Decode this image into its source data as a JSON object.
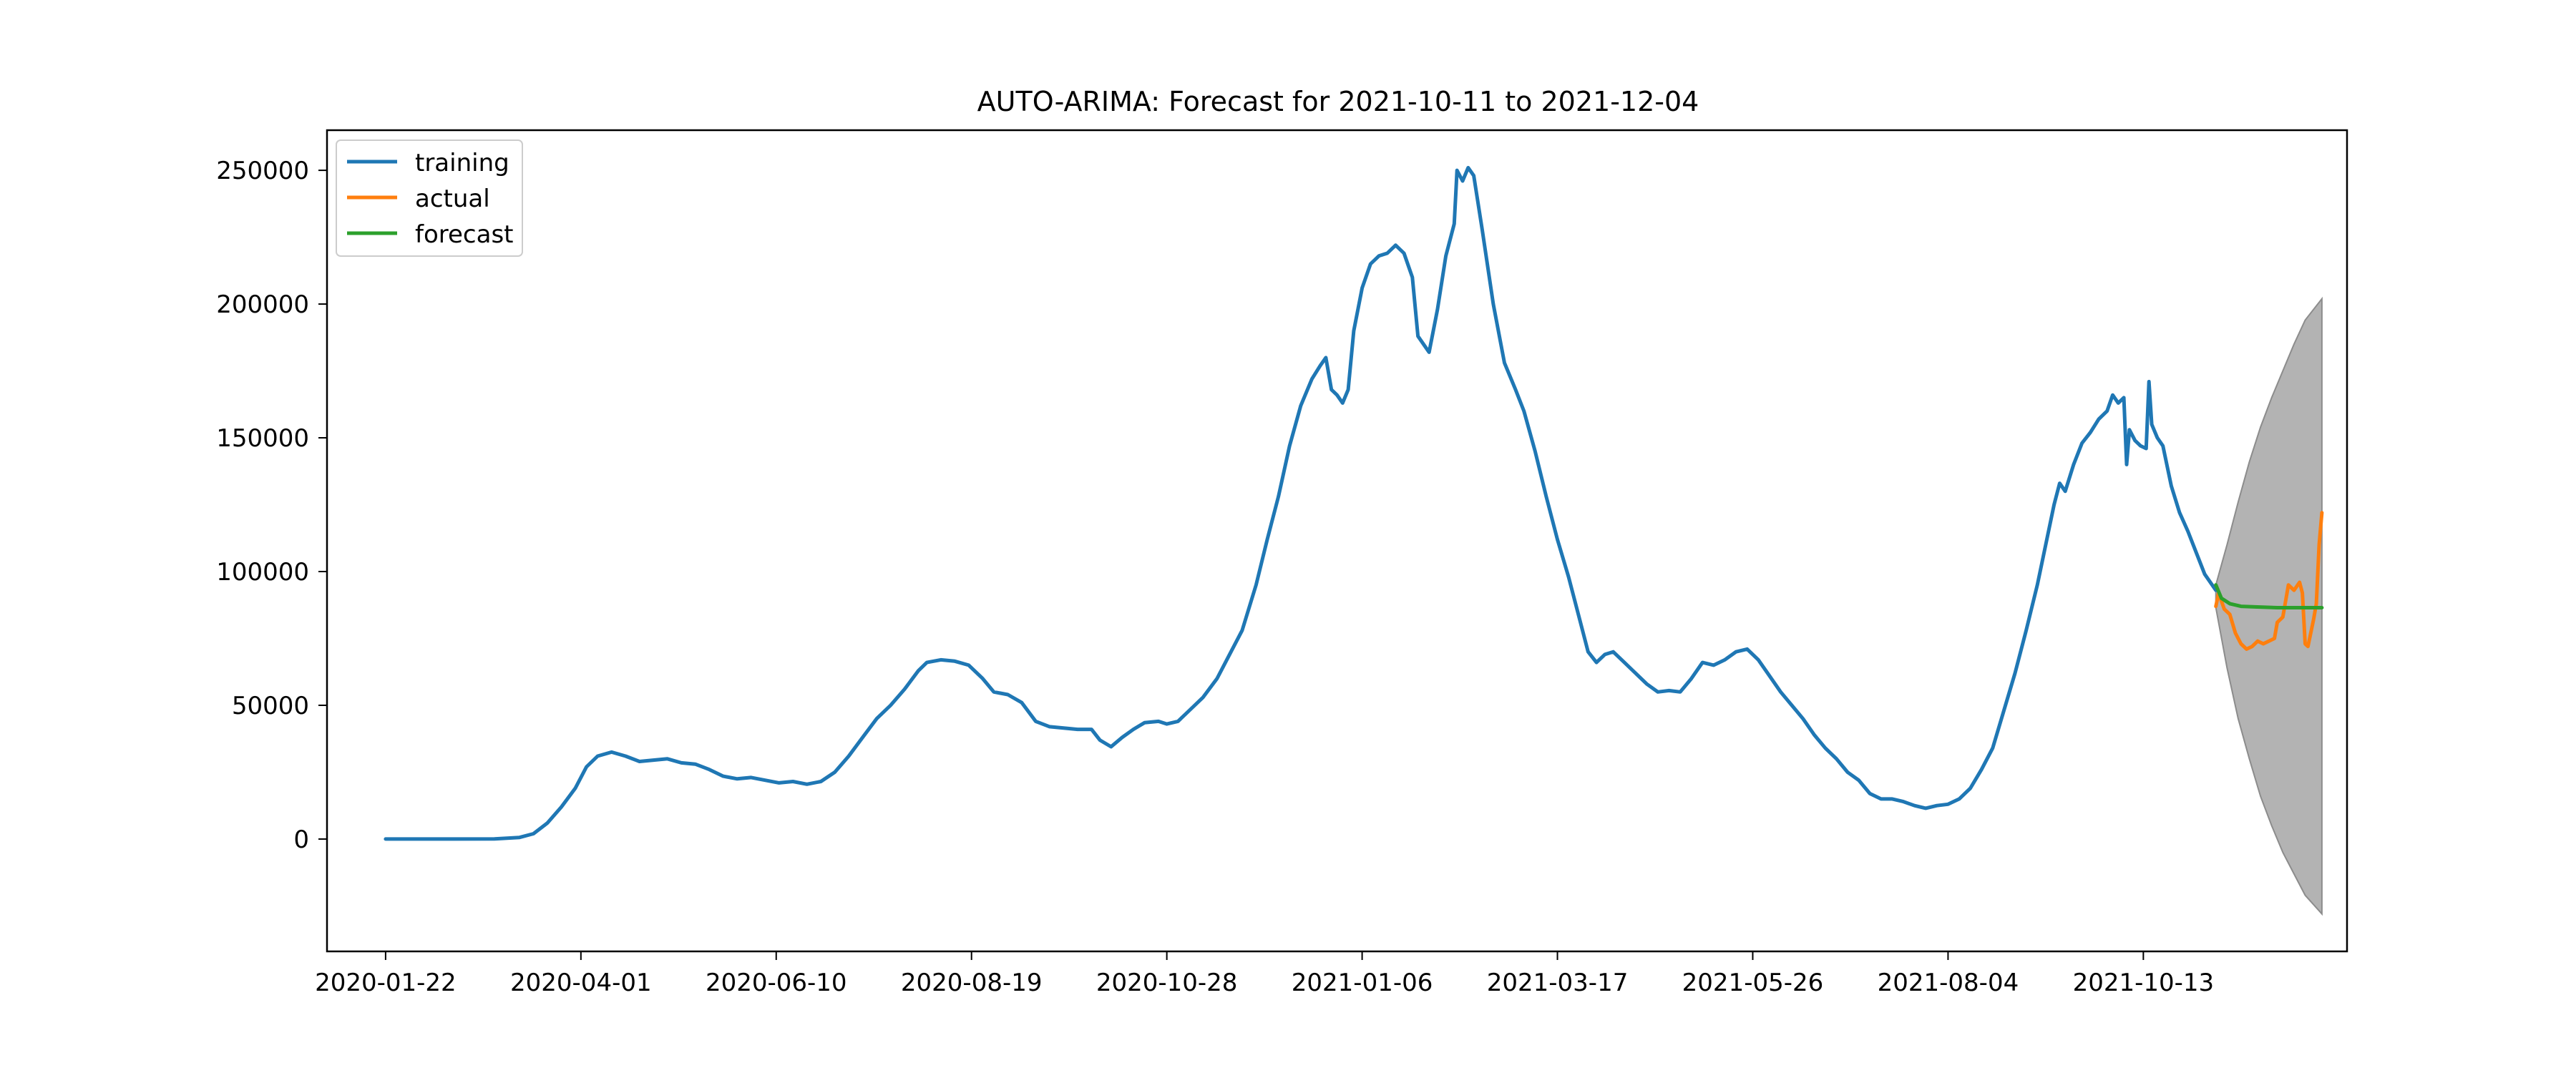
{
  "chart_data": {
    "type": "line",
    "title": "AUTO-ARIMA: Forecast for 2021-10-11 to 2021-12-04",
    "xlabel": "",
    "ylabel": "",
    "x_type": "date",
    "xlim": [
      "2020-01-01",
      "2021-12-25"
    ],
    "ylim": [
      -42000,
      265000
    ],
    "x_ticks": [
      "2020-01-22",
      "2020-04-01",
      "2020-06-10",
      "2020-08-19",
      "2020-10-28",
      "2021-01-06",
      "2021-03-17",
      "2021-05-26",
      "2021-08-04",
      "2021-10-13"
    ],
    "y_ticks": [
      0,
      50000,
      100000,
      150000,
      200000,
      250000
    ],
    "y_tick_labels": [
      "0",
      "50000",
      "100000",
      "150000",
      "200000",
      "250000"
    ],
    "grid": false,
    "legend_position": "top-left",
    "colors": {
      "training": "#1f77b4",
      "actual": "#ff7f0e",
      "forecast": "#2ca02c",
      "confidence_band": "#b3b3b3",
      "confidence_band_edge": "#8c8c8c"
    },
    "series": [
      {
        "name": "training",
        "points": [
          [
            "2020-01-22",
            0
          ],
          [
            "2020-02-15",
            0
          ],
          [
            "2020-03-01",
            50
          ],
          [
            "2020-03-10",
            600
          ],
          [
            "2020-03-15",
            2000
          ],
          [
            "2020-03-20",
            6000
          ],
          [
            "2020-03-25",
            12000
          ],
          [
            "2020-03-30",
            19000
          ],
          [
            "2020-04-03",
            27000
          ],
          [
            "2020-04-07",
            31000
          ],
          [
            "2020-04-12",
            32500
          ],
          [
            "2020-04-17",
            31000
          ],
          [
            "2020-04-22",
            29000
          ],
          [
            "2020-04-27",
            29500
          ],
          [
            "2020-05-02",
            30000
          ],
          [
            "2020-05-07",
            28500
          ],
          [
            "2020-05-12",
            28000
          ],
          [
            "2020-05-17",
            26000
          ],
          [
            "2020-05-22",
            23500
          ],
          [
            "2020-05-27",
            22500
          ],
          [
            "2020-06-01",
            23000
          ],
          [
            "2020-06-06",
            22000
          ],
          [
            "2020-06-11",
            21000
          ],
          [
            "2020-06-16",
            21500
          ],
          [
            "2020-06-21",
            20500
          ],
          [
            "2020-06-26",
            21500
          ],
          [
            "2020-07-01",
            25000
          ],
          [
            "2020-07-06",
            31000
          ],
          [
            "2020-07-11",
            38000
          ],
          [
            "2020-07-16",
            45000
          ],
          [
            "2020-07-21",
            50000
          ],
          [
            "2020-07-26",
            56000
          ],
          [
            "2020-07-31",
            63000
          ],
          [
            "2020-08-03",
            66000
          ],
          [
            "2020-08-08",
            67000
          ],
          [
            "2020-08-13",
            66500
          ],
          [
            "2020-08-18",
            65000
          ],
          [
            "2020-08-23",
            60000
          ],
          [
            "2020-08-27",
            55000
          ],
          [
            "2020-09-01",
            54000
          ],
          [
            "2020-09-06",
            51000
          ],
          [
            "2020-09-11",
            44000
          ],
          [
            "2020-09-16",
            42000
          ],
          [
            "2020-09-21",
            41500
          ],
          [
            "2020-09-26",
            41000
          ],
          [
            "2020-10-01",
            41000
          ],
          [
            "2020-10-04",
            37000
          ],
          [
            "2020-10-08",
            34500
          ],
          [
            "2020-10-12",
            38000
          ],
          [
            "2020-10-16",
            41000
          ],
          [
            "2020-10-20",
            43500
          ],
          [
            "2020-10-25",
            44000
          ],
          [
            "2020-10-28",
            43000
          ],
          [
            "2020-11-01",
            44000
          ],
          [
            "2020-11-05",
            48000
          ],
          [
            "2020-11-10",
            53000
          ],
          [
            "2020-11-15",
            60000
          ],
          [
            "2020-11-19",
            68000
          ],
          [
            "2020-11-24",
            78000
          ],
          [
            "2020-11-29",
            95000
          ],
          [
            "2020-12-03",
            112000
          ],
          [
            "2020-12-07",
            128000
          ],
          [
            "2020-12-11",
            147000
          ],
          [
            "2020-12-15",
            162000
          ],
          [
            "2020-12-19",
            172000
          ],
          [
            "2020-12-22",
            177000
          ],
          [
            "2020-12-24",
            180000
          ],
          [
            "2020-12-26",
            168000
          ],
          [
            "2020-12-28",
            166000
          ],
          [
            "2020-12-30",
            163000
          ],
          [
            "2021-01-01",
            168000
          ],
          [
            "2021-01-03",
            190000
          ],
          [
            "2021-01-06",
            206000
          ],
          [
            "2021-01-09",
            215000
          ],
          [
            "2021-01-12",
            218000
          ],
          [
            "2021-01-15",
            219000
          ],
          [
            "2021-01-18",
            222000
          ],
          [
            "2021-01-21",
            219000
          ],
          [
            "2021-01-24",
            210000
          ],
          [
            "2021-01-26",
            188000
          ],
          [
            "2021-01-28",
            185000
          ],
          [
            "2021-01-30",
            182000
          ],
          [
            "2021-02-02",
            198000
          ],
          [
            "2021-02-05",
            218000
          ],
          [
            "2021-02-08",
            230000
          ],
          [
            "2021-02-09",
            250000
          ],
          [
            "2021-02-11",
            246000
          ],
          [
            "2021-02-13",
            251000
          ],
          [
            "2021-02-15",
            248000
          ],
          [
            "2021-02-18",
            228000
          ],
          [
            "2021-02-22",
            200000
          ],
          [
            "2021-02-26",
            178000
          ],
          [
            "2021-03-02",
            168000
          ],
          [
            "2021-03-05",
            160000
          ],
          [
            "2021-03-09",
            145000
          ],
          [
            "2021-03-13",
            128000
          ],
          [
            "2021-03-17",
            112000
          ],
          [
            "2021-03-21",
            98000
          ],
          [
            "2021-03-25",
            82000
          ],
          [
            "2021-03-28",
            70000
          ],
          [
            "2021-03-31",
            66000
          ],
          [
            "2021-04-03",
            69000
          ],
          [
            "2021-04-06",
            70000
          ],
          [
            "2021-04-10",
            66000
          ],
          [
            "2021-04-14",
            62000
          ],
          [
            "2021-04-18",
            58000
          ],
          [
            "2021-04-22",
            55000
          ],
          [
            "2021-04-26",
            55500
          ],
          [
            "2021-04-30",
            55000
          ],
          [
            "2021-05-04",
            60000
          ],
          [
            "2021-05-08",
            66000
          ],
          [
            "2021-05-12",
            65000
          ],
          [
            "2021-05-16",
            67000
          ],
          [
            "2021-05-20",
            70000
          ],
          [
            "2021-05-24",
            71000
          ],
          [
            "2021-05-28",
            67000
          ],
          [
            "2021-06-01",
            61000
          ],
          [
            "2021-06-05",
            55000
          ],
          [
            "2021-06-09",
            50000
          ],
          [
            "2021-06-13",
            45000
          ],
          [
            "2021-06-17",
            39000
          ],
          [
            "2021-06-21",
            34000
          ],
          [
            "2021-06-25",
            30000
          ],
          [
            "2021-06-29",
            25000
          ],
          [
            "2021-07-03",
            22000
          ],
          [
            "2021-07-07",
            17000
          ],
          [
            "2021-07-11",
            15000
          ],
          [
            "2021-07-15",
            15000
          ],
          [
            "2021-07-19",
            14000
          ],
          [
            "2021-07-23",
            12500
          ],
          [
            "2021-07-27",
            11500
          ],
          [
            "2021-07-31",
            12500
          ],
          [
            "2021-08-04",
            13000
          ],
          [
            "2021-08-08",
            15000
          ],
          [
            "2021-08-12",
            19000
          ],
          [
            "2021-08-16",
            26000
          ],
          [
            "2021-08-20",
            34000
          ],
          [
            "2021-08-24",
            48000
          ],
          [
            "2021-08-28",
            62000
          ],
          [
            "2021-09-01",
            78000
          ],
          [
            "2021-09-05",
            95000
          ],
          [
            "2021-09-08",
            110000
          ],
          [
            "2021-09-11",
            125000
          ],
          [
            "2021-09-13",
            133000
          ],
          [
            "2021-09-15",
            130000
          ],
          [
            "2021-09-18",
            140000
          ],
          [
            "2021-09-21",
            148000
          ],
          [
            "2021-09-24",
            152000
          ],
          [
            "2021-09-27",
            157000
          ],
          [
            "2021-09-30",
            160000
          ],
          [
            "2021-10-02",
            166000
          ],
          [
            "2021-10-04",
            163000
          ],
          [
            "2021-10-06",
            165000
          ],
          [
            "2021-10-07",
            140000
          ],
          [
            "2021-10-08",
            153000
          ],
          [
            "2021-10-10",
            149000
          ],
          [
            "2021-10-12",
            147000
          ],
          [
            "2021-10-14",
            146000
          ],
          [
            "2021-10-15",
            171000
          ],
          [
            "2021-10-16",
            155000
          ],
          [
            "2021-10-18",
            150000
          ],
          [
            "2021-10-20",
            147000
          ],
          [
            "2021-10-23",
            132000
          ],
          [
            "2021-10-26",
            122000
          ],
          [
            "2021-10-29",
            115000
          ],
          [
            "2021-11-01",
            107000
          ],
          [
            "2021-11-04",
            99000
          ],
          [
            "2021-11-08",
            93000
          ]
        ]
      },
      {
        "name": "actual",
        "points": [
          [
            "2021-11-08",
            87000
          ],
          [
            "2021-11-09",
            92000
          ],
          [
            "2021-11-11",
            86000
          ],
          [
            "2021-11-13",
            84000
          ],
          [
            "2021-11-15",
            77000
          ],
          [
            "2021-11-17",
            73000
          ],
          [
            "2021-11-19",
            71000
          ],
          [
            "2021-11-21",
            72000
          ],
          [
            "2021-11-23",
            74000
          ],
          [
            "2021-11-25",
            73000
          ],
          [
            "2021-11-27",
            74000
          ],
          [
            "2021-11-29",
            75000
          ],
          [
            "2021-11-30",
            81000
          ],
          [
            "2021-12-02",
            83000
          ],
          [
            "2021-12-04",
            95000
          ],
          [
            "2021-12-06",
            93000
          ],
          [
            "2021-12-08",
            96000
          ],
          [
            "2021-12-09",
            92000
          ],
          [
            "2021-12-10",
            73000
          ],
          [
            "2021-12-11",
            72000
          ],
          [
            "2021-12-13",
            82000
          ],
          [
            "2021-12-14",
            88000
          ],
          [
            "2021-12-15",
            110000
          ],
          [
            "2021-12-16",
            122000
          ]
        ]
      },
      {
        "name": "forecast",
        "points": [
          [
            "2021-11-08",
            95000
          ],
          [
            "2021-11-10",
            90000
          ],
          [
            "2021-11-13",
            88000
          ],
          [
            "2021-11-17",
            87000
          ],
          [
            "2021-11-22",
            86800
          ],
          [
            "2021-11-30",
            86500
          ],
          [
            "2021-12-08",
            86500
          ],
          [
            "2021-12-16",
            86500
          ]
        ]
      }
    ],
    "confidence_interval": {
      "points": [
        [
          "2021-11-08",
          86500,
          95000
        ],
        [
          "2021-11-12",
          64000,
          110000
        ],
        [
          "2021-11-16",
          45000,
          126000
        ],
        [
          "2021-11-20",
          30000,
          141000
        ],
        [
          "2021-11-24",
          16000,
          154000
        ],
        [
          "2021-11-28",
          5000,
          165000
        ],
        [
          "2021-12-02",
          -5000,
          175000
        ],
        [
          "2021-12-06",
          -13000,
          185000
        ],
        [
          "2021-12-10",
          -21000,
          194000
        ],
        [
          "2021-12-16",
          -28000,
          202000
        ]
      ]
    },
    "legend": [
      "training",
      "actual",
      "forecast"
    ]
  }
}
